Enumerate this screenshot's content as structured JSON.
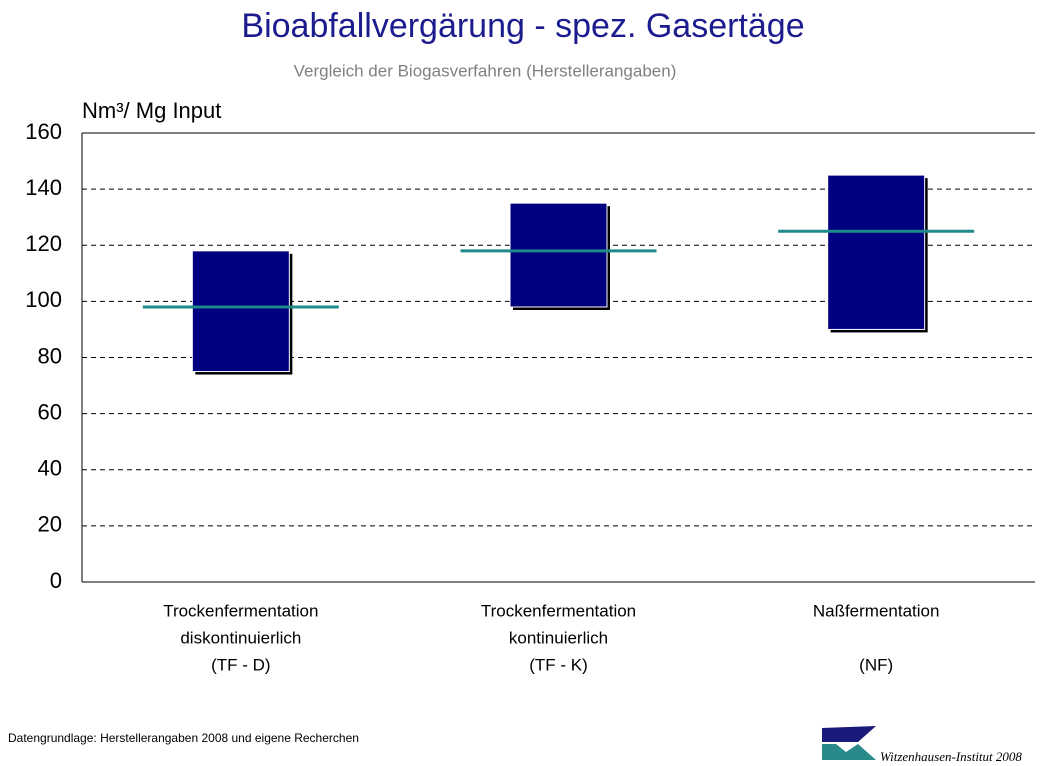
{
  "chart_data": {
    "type": "range",
    "title": "Bioabfallvergärung - spez. Gasertäge",
    "subtitle": "Vergleich der Biogasverfahren (Herstellerangaben)",
    "y_label": "Nm³/ Mg Input",
    "categories": [
      [
        "Trockenfermentation",
        "diskontinuierlich",
        "(TF - D)"
      ],
      [
        "Trockenfermentation",
        "kontinuierlich",
        "(TF - K)"
      ],
      [
        "Naßfermentation",
        "(NF)"
      ]
    ],
    "low": [
      75,
      98,
      90
    ],
    "high": [
      118,
      135,
      145
    ],
    "mean": [
      98,
      118,
      125
    ],
    "bar_color": "#000080",
    "mean_color": "#1f8a8a",
    "ylim": [
      0,
      160
    ],
    "yticks": [
      0,
      20,
      40,
      60,
      80,
      100,
      120,
      140,
      160
    ],
    "grid": true,
    "source": "Datengrundlage: Herstellerangaben 2008 und eigene Recherchen",
    "logo_text": "Witzenhausen-Institut 2008"
  }
}
